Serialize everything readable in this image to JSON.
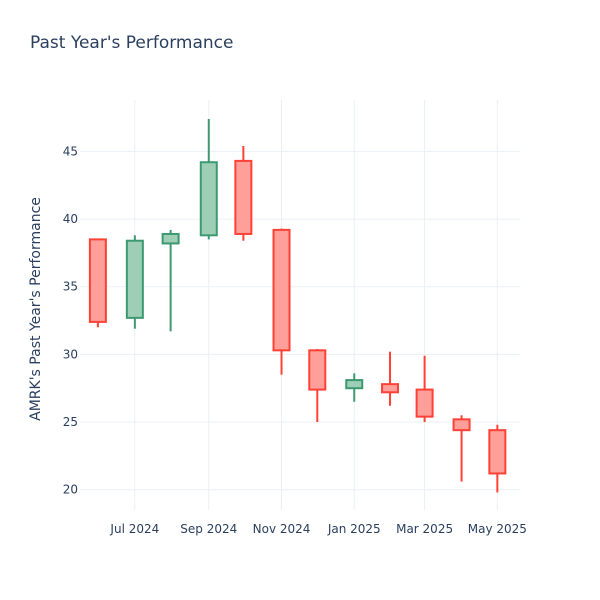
{
  "chart_data": {
    "type": "candlestick",
    "title": "Past Year's Performance",
    "xlabel": "",
    "ylabel": "AMRK's Past Year's Performance",
    "ylim": [
      18.5,
      48.8
    ],
    "xlim": [
      "2024-05-16",
      "2025-05-20"
    ],
    "yticks": [
      20,
      25,
      30,
      35,
      40,
      45
    ],
    "xticks": [
      {
        "date": "2024-07-01",
        "label": "Jul 2024"
      },
      {
        "date": "2024-09-01",
        "label": "Sep 2024"
      },
      {
        "date": "2024-11-01",
        "label": "Nov 2024"
      },
      {
        "date": "2025-01-01",
        "label": "Jan 2025"
      },
      {
        "date": "2025-03-01",
        "label": "Mar 2025"
      },
      {
        "date": "2025-05-01",
        "label": "May 2025"
      }
    ],
    "grid": true,
    "colors": {
      "increasing_line": "#3d9970",
      "increasing_fill": "#9ecfb6",
      "decreasing_line": "#ff4136",
      "decreasing_fill": "#ff9f9a",
      "grid": "#ebeff5",
      "text": "#2a3f5f"
    },
    "candles": [
      {
        "date": "2024-05-31",
        "open": 38.5,
        "high": 38.5,
        "low": 32.0,
        "close": 32.4
      },
      {
        "date": "2024-07-01",
        "open": 32.7,
        "high": 38.8,
        "low": 31.9,
        "close": 38.4
      },
      {
        "date": "2024-07-31",
        "open": 38.2,
        "high": 39.2,
        "low": 31.7,
        "close": 38.9
      },
      {
        "date": "2024-09-01",
        "open": 38.8,
        "high": 47.4,
        "low": 38.5,
        "close": 44.2
      },
      {
        "date": "2024-09-30",
        "open": 44.3,
        "high": 45.4,
        "low": 38.4,
        "close": 38.9
      },
      {
        "date": "2024-11-01",
        "open": 39.2,
        "high": 39.3,
        "low": 28.5,
        "close": 30.3
      },
      {
        "date": "2024-12-01",
        "open": 30.3,
        "high": 30.4,
        "low": 25.0,
        "close": 27.4
      },
      {
        "date": "2025-01-01",
        "open": 27.5,
        "high": 28.6,
        "low": 26.5,
        "close": 28.1
      },
      {
        "date": "2025-01-31",
        "open": 27.8,
        "high": 30.2,
        "low": 26.2,
        "close": 27.2
      },
      {
        "date": "2025-03-01",
        "open": 27.4,
        "high": 29.9,
        "low": 25.0,
        "close": 25.4
      },
      {
        "date": "2025-04-01",
        "open": 25.2,
        "high": 25.5,
        "low": 20.6,
        "close": 24.4
      },
      {
        "date": "2025-05-01",
        "open": 24.4,
        "high": 24.8,
        "low": 19.8,
        "close": 21.2
      }
    ]
  }
}
